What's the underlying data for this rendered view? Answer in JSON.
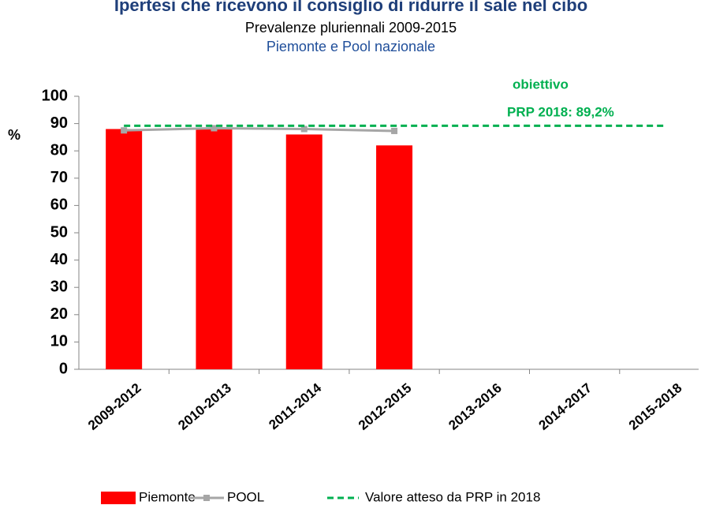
{
  "chart_data": {
    "type": "bar",
    "title": "Ipertesi che ricevono il consiglio di ridurre il sale nel cibo",
    "subtitle": "Prevalenze pluriennali 2009-2015",
    "subtitle2": "Piemonte e Pool nazionale",
    "y_label": "%",
    "categories": [
      "2009-2012",
      "2010-2013",
      "2011-2014",
      "2012-2015",
      "2013-2016",
      "2014-2017",
      "2015-2018"
    ],
    "series": [
      {
        "name": "Piemonte",
        "type": "bar",
        "color": "#ff0000",
        "values": [
          88,
          88,
          86,
          82,
          null,
          null,
          null
        ]
      },
      {
        "name": "POOL",
        "type": "line",
        "color": "#a6a6a6",
        "values": [
          87.5,
          88.3,
          88,
          87.3,
          null,
          null,
          null
        ]
      },
      {
        "name": "Valore atteso da PRP in 2018",
        "type": "target",
        "color": "#00b050",
        "value": 89.2
      }
    ],
    "annotation": [
      "obiettivo",
      "PRP 2018: 89,2%"
    ],
    "ylim": [
      0,
      100
    ],
    "yticks": [
      0,
      10,
      20,
      30,
      40,
      50,
      60,
      70,
      80,
      90,
      100
    ],
    "grid": false,
    "legend": "bottom"
  }
}
